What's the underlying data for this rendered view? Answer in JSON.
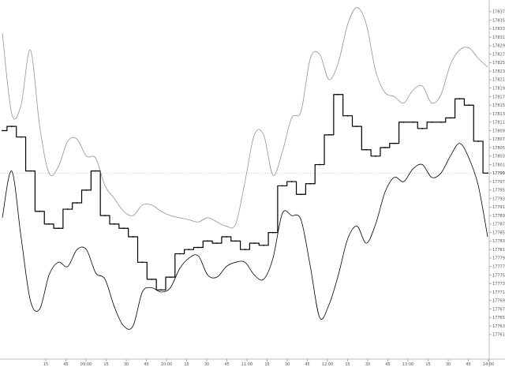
{
  "chart_data": {
    "type": "line",
    "title": "",
    "xlabel": "",
    "ylabel": "",
    "ylim": [
      17751,
      17839
    ],
    "y_ticks": [
      17761,
      17763,
      17765,
      17767,
      17769,
      17771,
      17773,
      17775,
      17777,
      17779,
      17781,
      17783,
      17785,
      17787,
      17789,
      17791,
      17793,
      17795,
      17797,
      17799,
      17801,
      17803,
      17805,
      17807,
      17809,
      17811,
      17813,
      17815,
      17817,
      17819,
      17821,
      17823,
      17825,
      17827,
      17829,
      17831,
      17833,
      17835,
      17837
    ],
    "current_value_label": "17799",
    "x_ticks": [
      "15",
      "45",
      "09:00",
      "15",
      "30",
      "45",
      "10:00",
      "15",
      "30",
      "45",
      "11:00",
      "15",
      "30",
      "45",
      "12:00",
      "15",
      "30",
      "45",
      "13:00",
      "15",
      "30",
      "45",
      "14:00"
    ],
    "grid": false,
    "reference_line": {
      "value": 17799,
      "style": "dotted"
    },
    "series": [
      {
        "role": "price",
        "color": "#000000",
        "values": [
          17809.0,
          17810.0,
          17807.5,
          17799.5,
          17790.0,
          17787.0,
          17786.0,
          17790.5,
          17792.0,
          17795.0,
          17799.5,
          17789.0,
          17787.0,
          17786.0,
          17784.0,
          17778.0,
          17774.0,
          17771.5,
          17774.5,
          17780.0,
          17781.0,
          17781.5,
          17783.0,
          17782.5,
          17784.0,
          17783.0,
          17781.0,
          17782.5,
          17782.0,
          17785.0,
          17796.0,
          17797.0,
          17794.0,
          17796.5,
          17801.0,
          17808.0,
          17817.5,
          17812.5,
          17810.0,
          17804.5,
          17803.0,
          17805.0,
          17806.0,
          17811.0,
          17811.0,
          17809.5,
          17811.0,
          17811.0,
          17812.0,
          17816.5,
          17815.0,
          17806.5,
          17799.0
        ]
      },
      {
        "role": "band-upper",
        "color": "#808080",
        "values": [
          17832.0,
          17813.0,
          17815.0,
          17828.0,
          17810.0,
          17799.0,
          17800.5,
          17806.5,
          17807.0,
          17803.0,
          17802.5,
          17796.0,
          17793.0,
          17790.0,
          17789.0,
          17791.5,
          17791.5,
          17790.0,
          17789.0,
          17788.5,
          17788.0,
          17787.5,
          17788.5,
          17787.5,
          17786.5,
          17787.0,
          17797.0,
          17808.0,
          17808.0,
          17798.5,
          17804.0,
          17812.0,
          17813.5,
          17826.0,
          17827.0,
          17821.0,
          17825.0,
          17834.0,
          17838.0,
          17834.0,
          17823.0,
          17818.0,
          17817.0,
          17815.5,
          17818.5,
          17819.5,
          17815.5,
          17817.5,
          17824.5,
          17828.0,
          17828.5,
          17826.0,
          17824.0
        ]
      },
      {
        "role": "band-lower",
        "color": "#000000",
        "values": [
          17788.5,
          17799.5,
          17784.0,
          17769.0,
          17767.0,
          17775.0,
          17778.0,
          17777.0,
          17781.0,
          17781.0,
          17775.5,
          17774.0,
          17767.5,
          17763.0,
          17763.0,
          17771.0,
          17772.0,
          17771.0,
          17772.0,
          17776.5,
          17779.0,
          17779.5,
          17775.0,
          17774.5,
          17777.0,
          17778.0,
          17778.0,
          17775.0,
          17774.0,
          17779.0,
          17789.5,
          17789.0,
          17788.0,
          17777.0,
          17765.0,
          17768.0,
          17775.0,
          17783.5,
          17786.5,
          17782.5,
          17787.0,
          17794.5,
          17798.0,
          17797.0,
          17800.0,
          17801.0,
          17798.0,
          17799.0,
          17803.0,
          17806.0,
          17802.5,
          17796.0,
          17784.0
        ]
      }
    ]
  }
}
